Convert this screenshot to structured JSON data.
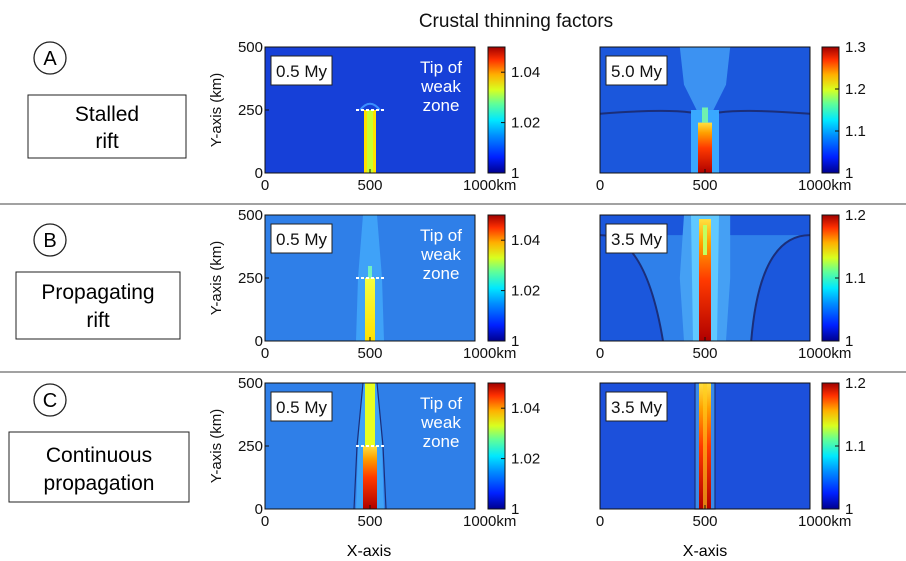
{
  "figure": {
    "title": "Crustal thinning factors",
    "xlabel": "X-axis",
    "ylabel": "Y-axis (km)",
    "x_unit_suffix": "km",
    "tip_label_lines": [
      "Tip of",
      "weak",
      "zone"
    ]
  },
  "colors": {
    "colormap": [
      "#00008f",
      "#0020ff",
      "#0090ff",
      "#00e8ff",
      "#60ff98",
      "#d8ff20",
      "#ffb000",
      "#ff3000",
      "#a00000"
    ],
    "background_blue": "#1b57dc",
    "pale_blue": "#3c92f2",
    "tip_marker": "#ffffff"
  },
  "chart_data": [
    {
      "id": "A-left",
      "row": "A",
      "type": "heatmap",
      "time_label": "0.5 My",
      "ylabel": "Y-axis (km)",
      "xlim": [
        0,
        1000
      ],
      "ylim": [
        0,
        500
      ],
      "xticks": [
        "0",
        "500",
        "1000km"
      ],
      "yticks": [
        "0",
        "250",
        "500"
      ],
      "colorbar": {
        "min": 1,
        "max": 1.05,
        "ticks": [
          "1",
          "1.02",
          "1.04"
        ]
      },
      "tip_of_weak_zone_y_km": 250,
      "rift_x_km": 500
    },
    {
      "id": "A-right",
      "row": "A",
      "type": "heatmap",
      "time_label": "5.0 My",
      "xlim": [
        0,
        1000
      ],
      "ylim": [
        0,
        500
      ],
      "xticks": [
        "0",
        "500",
        "1000km"
      ],
      "colorbar": {
        "min": 1,
        "max": 1.3,
        "ticks": [
          "1",
          "1.1",
          "1.2",
          "1.3"
        ]
      },
      "rift_x_km": 500
    },
    {
      "id": "B-left",
      "row": "B",
      "type": "heatmap",
      "time_label": "0.5 My",
      "ylabel": "Y-axis (km)",
      "xlim": [
        0,
        1000
      ],
      "ylim": [
        0,
        500
      ],
      "xticks": [
        "0",
        "500",
        "1000km"
      ],
      "yticks": [
        "0",
        "250",
        "500"
      ],
      "colorbar": {
        "min": 1,
        "max": 1.05,
        "ticks": [
          "1",
          "1.02",
          "1.04"
        ]
      },
      "tip_of_weak_zone_y_km": 250,
      "rift_x_km": 500
    },
    {
      "id": "B-right",
      "row": "B",
      "type": "heatmap",
      "time_label": "3.5 My",
      "xlim": [
        0,
        1000
      ],
      "ylim": [
        0,
        500
      ],
      "xticks": [
        "0",
        "500",
        "1000km"
      ],
      "colorbar": {
        "min": 1,
        "max": 1.2,
        "ticks": [
          "1",
          "1.1",
          "1.2"
        ]
      },
      "rift_x_km": 500
    },
    {
      "id": "C-left",
      "row": "C",
      "type": "heatmap",
      "time_label": "0.5 My",
      "ylabel": "Y-axis (km)",
      "xlim": [
        0,
        1000
      ],
      "ylim": [
        0,
        500
      ],
      "xticks": [
        "0",
        "500",
        "1000km"
      ],
      "yticks": [
        "0",
        "250",
        "500"
      ],
      "colorbar": {
        "min": 1,
        "max": 1.05,
        "ticks": [
          "1",
          "1.02",
          "1.04"
        ]
      },
      "tip_of_weak_zone_y_km": 250,
      "rift_x_km": 500
    },
    {
      "id": "C-right",
      "row": "C",
      "type": "heatmap",
      "time_label": "3.5 My",
      "xlim": [
        0,
        1000
      ],
      "ylim": [
        0,
        500
      ],
      "xticks": [
        "0",
        "500",
        "1000km"
      ],
      "colorbar": {
        "min": 1,
        "max": 1.2,
        "ticks": [
          "1",
          "1.1",
          "1.2"
        ]
      },
      "rift_x_km": 500
    }
  ],
  "rows": [
    {
      "letter": "A",
      "label_lines": [
        "Stalled",
        "rift"
      ]
    },
    {
      "letter": "B",
      "label_lines": [
        "Propagating",
        "rift"
      ]
    },
    {
      "letter": "C",
      "label_lines": [
        "Continuous",
        "propagation"
      ]
    }
  ]
}
